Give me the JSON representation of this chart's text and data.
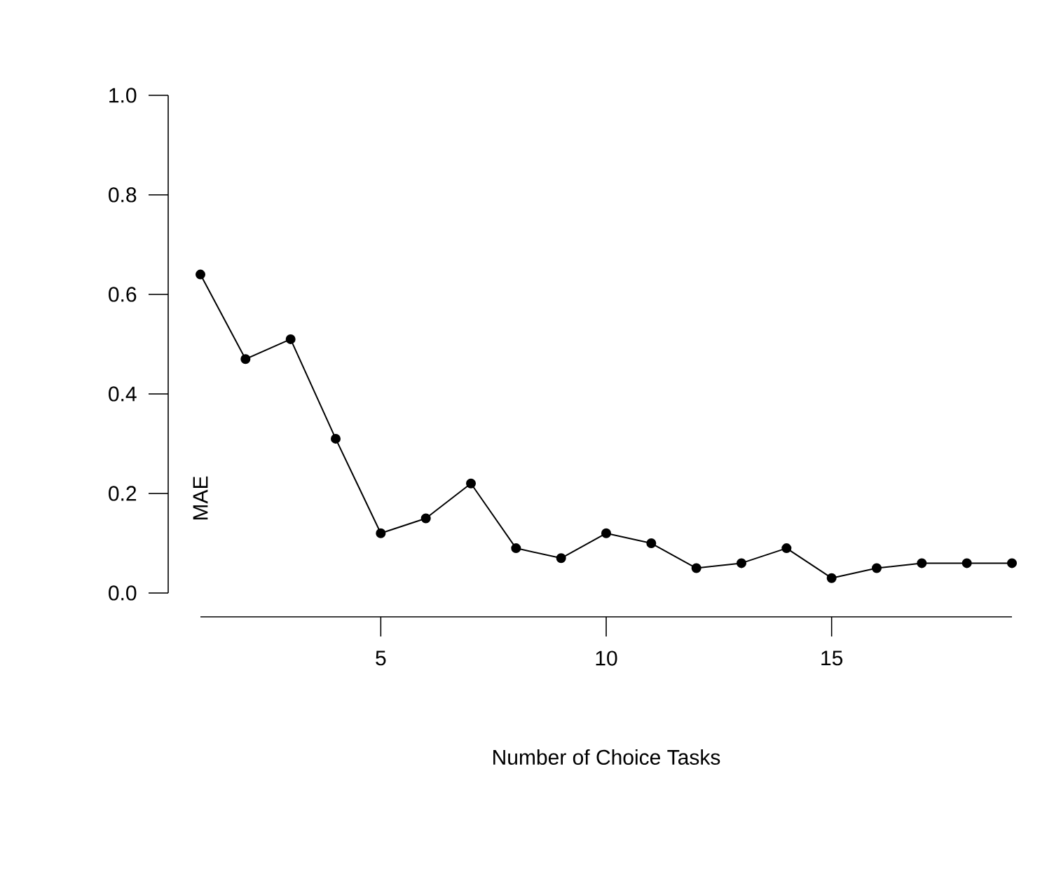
{
  "chart_data": {
    "type": "line",
    "xlabel": "Number of Choice Tasks",
    "ylabel": "MAE",
    "color": "#000000",
    "marker": "circle",
    "x": [
      1,
      2,
      3,
      4,
      5,
      6,
      7,
      8,
      9,
      10,
      11,
      12,
      13,
      14,
      15,
      16,
      17,
      18,
      19
    ],
    "values": [
      0.64,
      0.47,
      0.51,
      0.31,
      0.12,
      0.15,
      0.22,
      0.09,
      0.07,
      0.12,
      0.1,
      0.05,
      0.06,
      0.09,
      0.03,
      0.05,
      0.06,
      0.06,
      0.06
    ],
    "xlim": [
      1,
      19
    ],
    "xticks": [
      5,
      10,
      15
    ],
    "ylim": [
      0,
      1
    ],
    "yticks": [
      {
        "value": 0,
        "label": "0.0"
      },
      {
        "value": 0.2,
        "label": "0.2"
      },
      {
        "value": 0.4,
        "label": "0.4"
      },
      {
        "value": 0.6,
        "label": "0.6"
      },
      {
        "value": 0.8,
        "label": "0.8"
      },
      {
        "value": 1,
        "label": "1.0"
      }
    ]
  }
}
